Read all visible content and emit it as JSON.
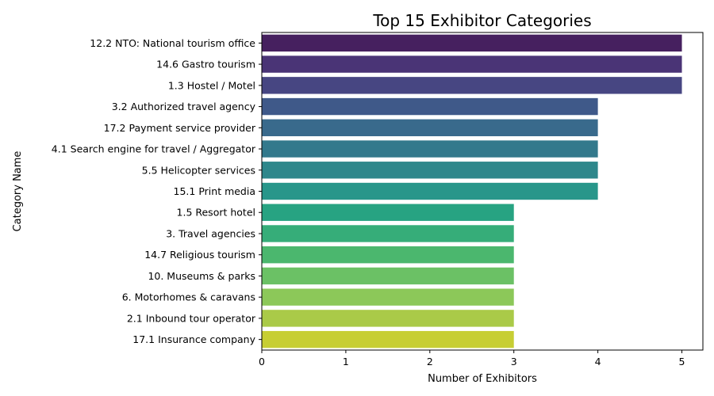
{
  "chart_data": {
    "type": "bar",
    "orientation": "horizontal",
    "title": "Top 15 Exhibitor Categories",
    "xlabel": "Number of Exhibitors",
    "ylabel": "Category Name",
    "xlim": [
      0,
      5.25
    ],
    "xticks": [
      0,
      1,
      2,
      3,
      4,
      5
    ],
    "grid": false,
    "categories": [
      "12.2 NTO: National tourism office",
      "14.6 Gastro tourism",
      "1.3 Hostel / Motel",
      "3.2 Authorized travel agency",
      "17.2 Payment service provider",
      "4.1 Search engine for travel / Aggregator",
      "5.5 Helicopter services",
      "15.1 Print media",
      "1.5 Resort hotel",
      "3. Travel  agencies",
      "14.7 Religious tourism",
      "10. Museums & parks",
      "6. Motorhomes & caravans",
      "2.1 Inbound tour operator",
      "17.1 Insurance company"
    ],
    "values": [
      5,
      5,
      5,
      4,
      4,
      4,
      4,
      4,
      3,
      3,
      3,
      3,
      3,
      3,
      3
    ],
    "colors": [
      "#46205f",
      "#4a3476",
      "#474682",
      "#3f5989",
      "#396a8c",
      "#33798c",
      "#2e878b",
      "#28968a",
      "#27a382",
      "#36ad79",
      "#4bb76e",
      "#6bc165",
      "#8cc859",
      "#aaca48",
      "#c7ce34"
    ]
  }
}
